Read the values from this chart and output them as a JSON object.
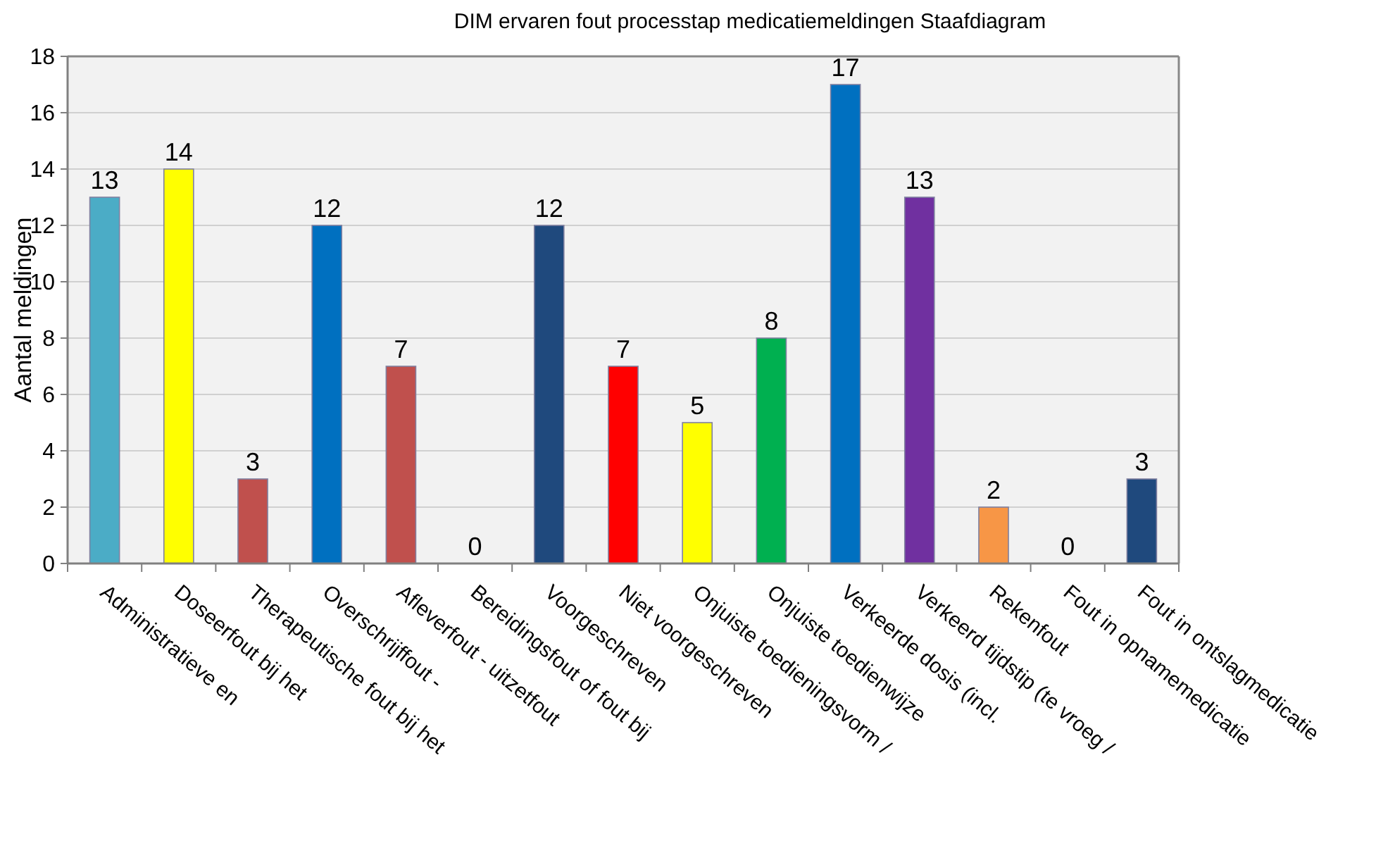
{
  "chart_data": {
    "type": "bar",
    "title": "DIM ervaren fout processtap medicatiemeldingen Staafdiagram",
    "ylabel": "Aantal meldingen",
    "categories": [
      "Administratieve en",
      "Doseerfout bij het",
      "Therapeutische fout bij het",
      "Overschrijffout -",
      "Afleverfout - uitzetfout",
      "Bereidingsfout of fout bij",
      "Voorgeschreven",
      "Niet voorgeschreven",
      "Onjuiste toedieningsvorm /",
      "Onjuiste toedienwijze",
      "Verkeerde dosis (incl.",
      "Verkeerd tijdstip (te vroeg /",
      "Rekenfout",
      "Fout in opnamemedicatie",
      "Fout in ontslagmedicatie"
    ],
    "values": [
      13,
      14,
      3,
      12,
      7,
      0,
      12,
      7,
      5,
      8,
      17,
      13,
      2,
      0,
      3
    ],
    "colors": [
      "#4bacc6",
      "#ffff00",
      "#c0504d",
      "#0070c0",
      "#c0504d",
      "#c0504d",
      "#1f497d",
      "#ff0000",
      "#ffff00",
      "#00b050",
      "#0070c0",
      "#7030a0",
      "#f79646",
      "#1f497d",
      "#1f497d"
    ],
    "ylim": [
      0,
      18
    ],
    "yticks": [
      0,
      2,
      4,
      6,
      8,
      10,
      12,
      14,
      16,
      18
    ],
    "grid": "y",
    "data_labels": true
  }
}
